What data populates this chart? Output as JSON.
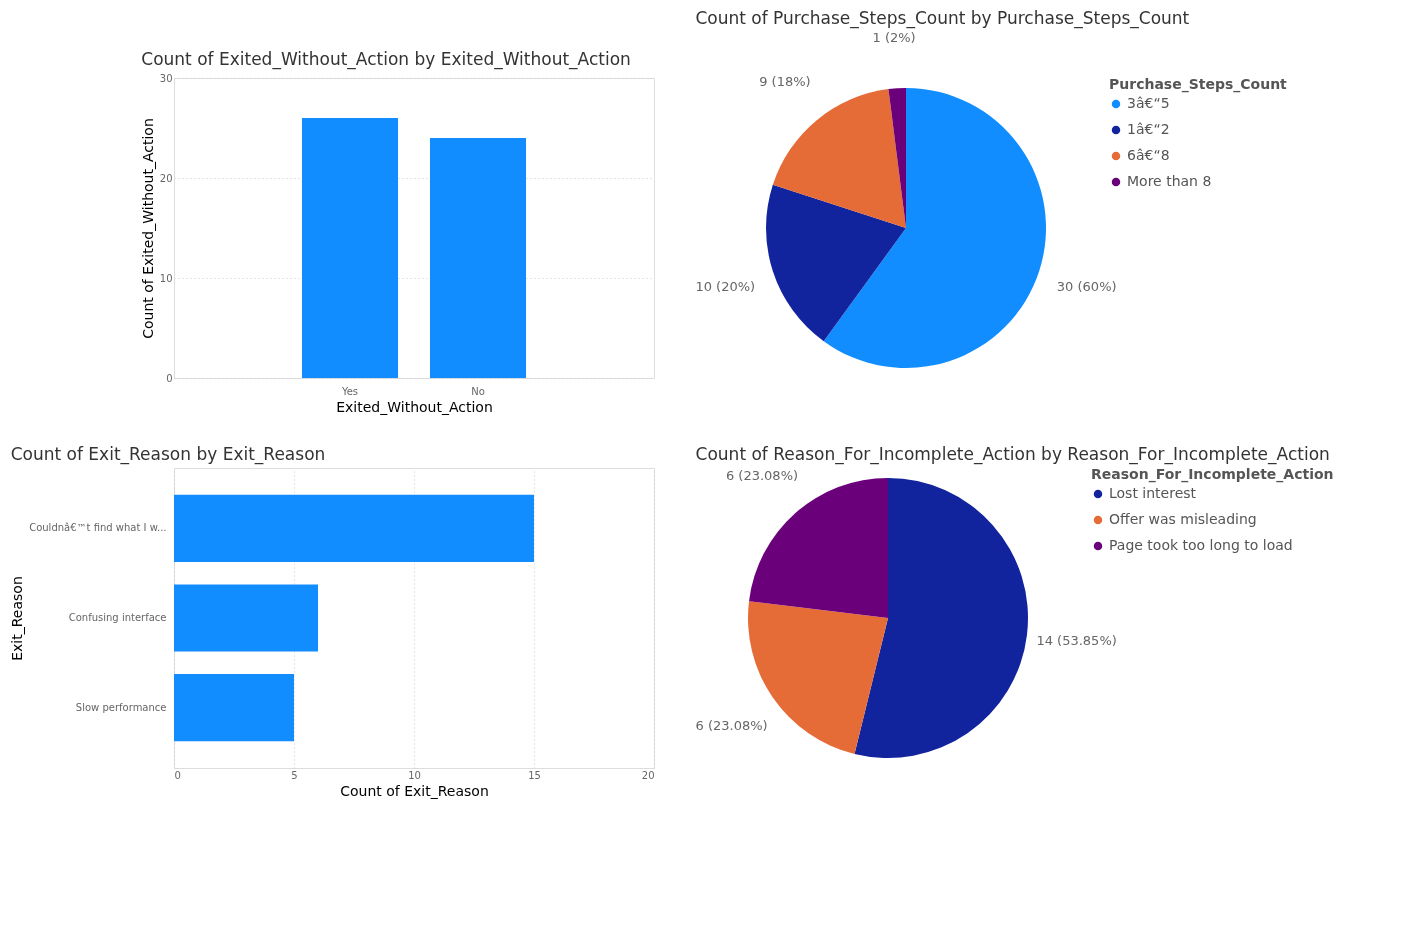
{
  "chart_data": [
    {
      "type": "bar",
      "title": "Count of Exited_Without_Action by Exited_Without_Action",
      "xlabel": "Exited_Without_Action",
      "ylabel": "Count of Exited_Without_Action",
      "categories": [
        "Yes",
        "No"
      ],
      "values": [
        26,
        24
      ],
      "color": "#118dff",
      "ylim": [
        0,
        30
      ],
      "yticks": [
        0,
        10,
        20,
        30
      ],
      "grid": "y"
    },
    {
      "type": "pie",
      "title": "Count of Purchase_Steps_Count by Purchase_Steps_Count",
      "legend_title": "Purchase_Steps_Count",
      "categories": [
        "3â€“5",
        "1â€“2",
        "6â€“8",
        "More than 8"
      ],
      "values": [
        30,
        10,
        9,
        1
      ],
      "colors": [
        "#118dff",
        "#12239e",
        "#e66c37",
        "#6b007b"
      ],
      "value_labels": [
        "30 (60%)",
        "10 (20%)",
        "9 (18%)",
        "1 (2%)"
      ],
      "legend": "right"
    },
    {
      "type": "bar",
      "orientation": "horizontal",
      "title": "Count of Exit_Reason by Exit_Reason",
      "xlabel": "Count of Exit_Reason",
      "ylabel": "Exit_Reason",
      "categories": [
        "Couldnâ€™t find what I w...",
        "Confusing interface",
        "Slow performance"
      ],
      "values": [
        15,
        6,
        5
      ],
      "color": "#118dff",
      "xlim": [
        0,
        20
      ],
      "xticks": [
        0,
        5,
        10,
        15,
        20
      ],
      "grid": "x"
    },
    {
      "type": "pie",
      "title": "Count of Reason_For_Incomplete_Action by Reason_For_Incomplete_Action",
      "legend_title": "Reason_For_Incomplete_Action",
      "categories": [
        "Lost interest",
        "Offer was misleading",
        "Page took too long to load"
      ],
      "values": [
        14,
        6,
        6
      ],
      "colors": [
        "#12239e",
        "#e66c37",
        "#6b007b"
      ],
      "value_labels": [
        "14 (53.85%)",
        "6 (23.08%)",
        "6 (23.08%)"
      ],
      "legend": "right"
    }
  ]
}
